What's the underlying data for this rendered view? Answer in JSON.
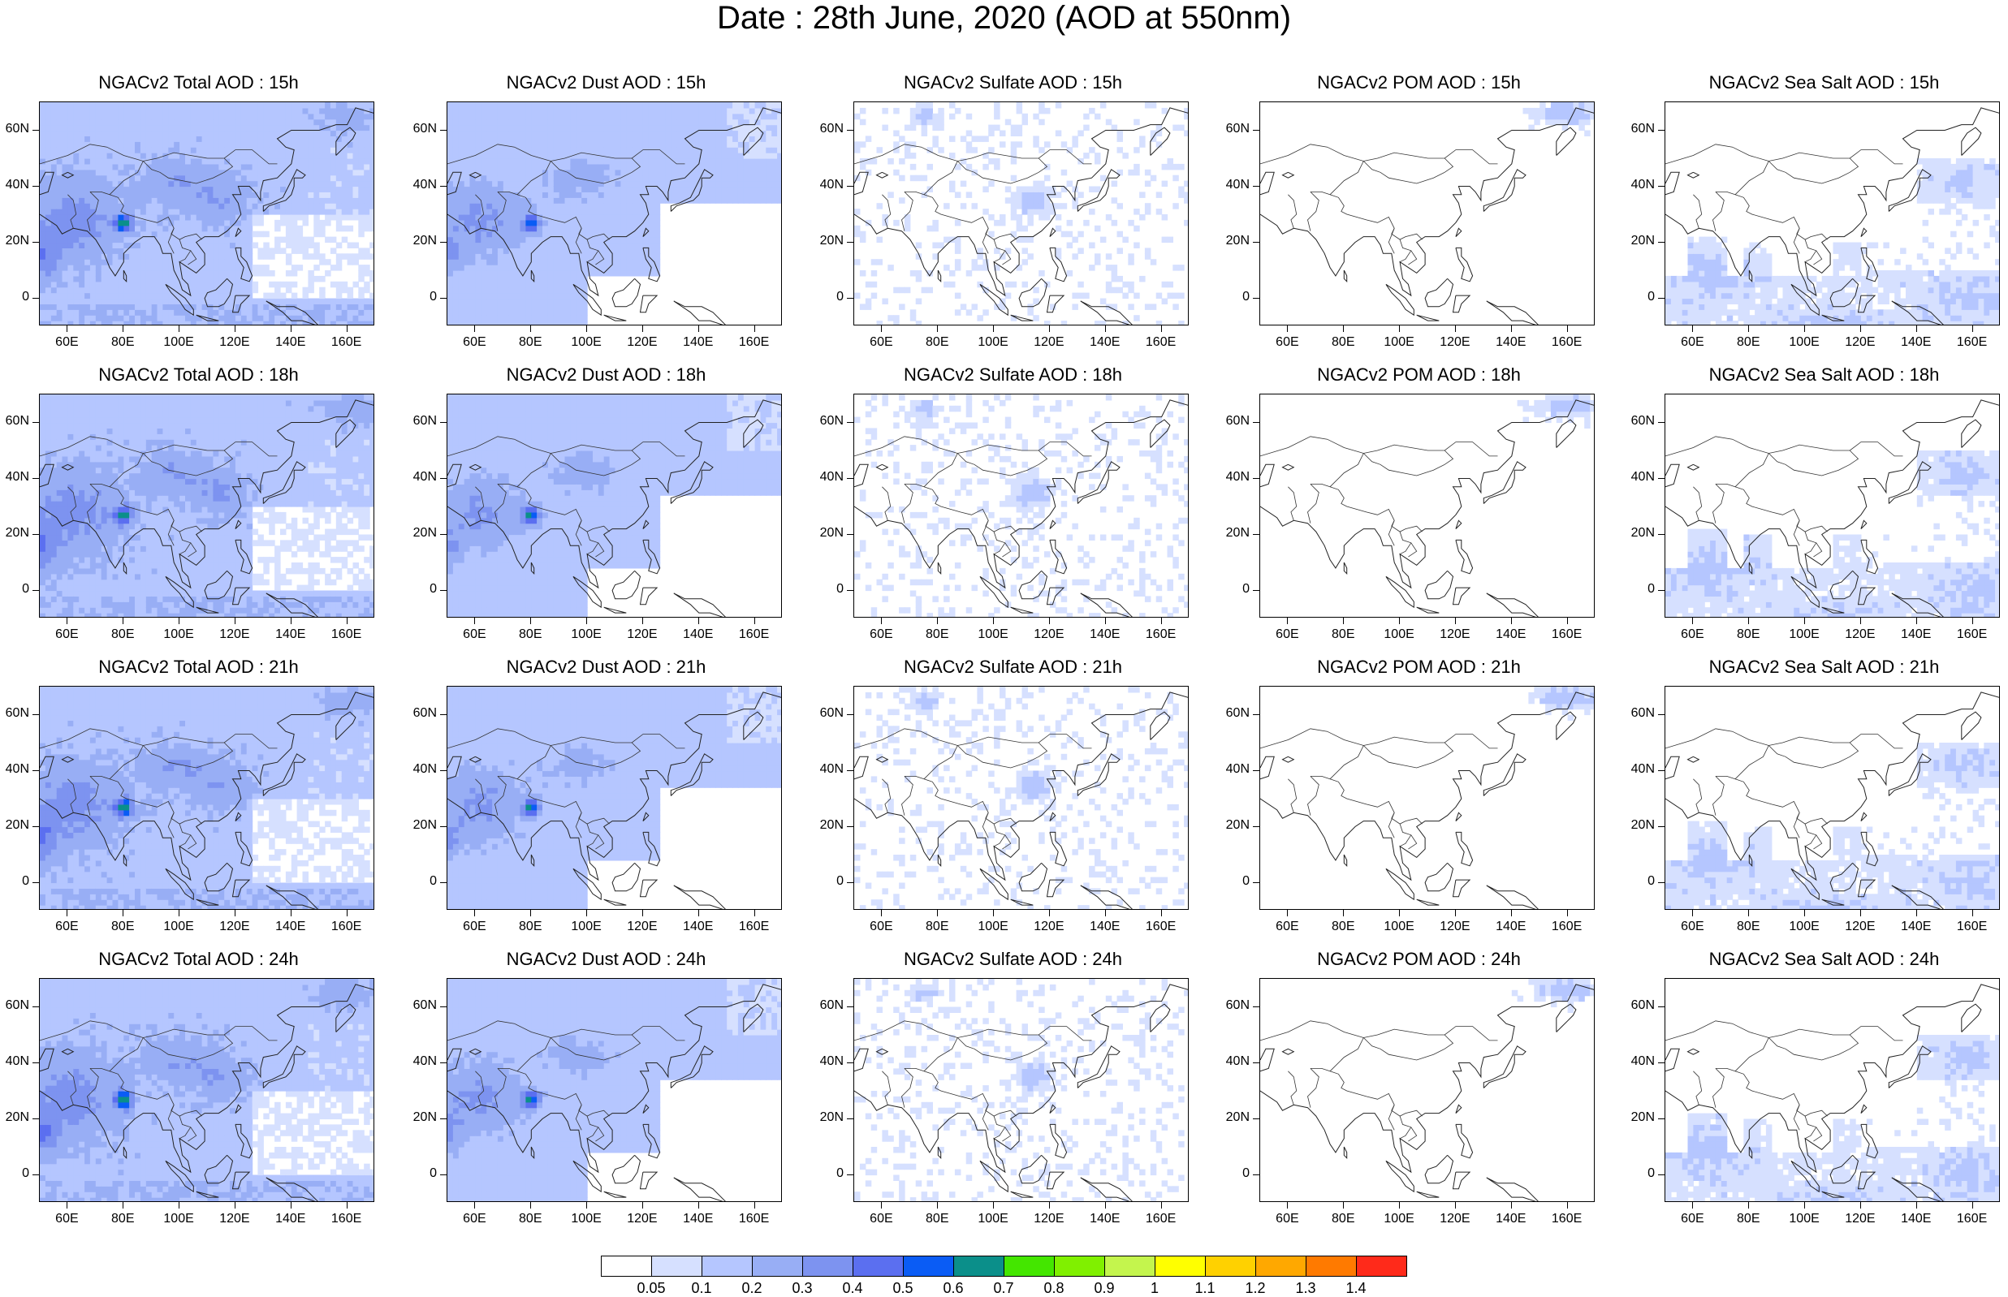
{
  "title": "Date : 28th June, 2020 (AOD at 550nm)",
  "grid": {
    "rows": 4,
    "cols": 5
  },
  "panels": [
    [
      "NGACv2 Total AOD : 15h",
      "NGACv2 Dust AOD : 15h",
      "NGACv2 Sulfate AOD : 15h",
      "NGACv2 POM AOD : 15h",
      "NGACv2 Sea Salt AOD : 15h"
    ],
    [
      "NGACv2 Total AOD : 18h",
      "NGACv2 Dust AOD : 18h",
      "NGACv2 Sulfate AOD : 18h",
      "NGACv2 POM AOD : 18h",
      "NGACv2 Sea Salt AOD : 18h"
    ],
    [
      "NGACv2 Total AOD : 21h",
      "NGACv2 Dust AOD : 21h",
      "NGACv2 Sulfate AOD : 21h",
      "NGACv2 POM AOD : 21h",
      "NGACv2 Sea Salt AOD : 21h"
    ],
    [
      "NGACv2 Total AOD : 24h",
      "NGACv2 Dust AOD : 24h",
      "NGACv2 Sulfate AOD : 24h",
      "NGACv2 POM AOD : 24h",
      "NGACv2 Sea Salt  AOD : 24h"
    ]
  ],
  "axes": {
    "x_ticks": [
      "60E",
      "80E",
      "100E",
      "120E",
      "140E",
      "160E"
    ],
    "x_values": [
      60,
      80,
      100,
      120,
      140,
      160
    ],
    "x_range": [
      50,
      170
    ],
    "y_ticks": [
      "60N",
      "40N",
      "20N",
      "0"
    ],
    "y_values": [
      60,
      40,
      20,
      0
    ],
    "y_range": [
      -10,
      70
    ]
  },
  "colorbar": {
    "labels": [
      "0.05",
      "0.1",
      "0.2",
      "0.3",
      "0.4",
      "0.5",
      "0.6",
      "0.7",
      "0.8",
      "0.9",
      "1",
      "1.1",
      "1.2",
      "1.3",
      "1.4"
    ],
    "colors": [
      "#ffffff",
      "#d6e0ff",
      "#b5c6ff",
      "#98aef5",
      "#7d93f0",
      "#5b6ff0",
      "#0a5cf5",
      "#0b8f8a",
      "#44e600",
      "#80f000",
      "#c4f54d",
      "#ffff00",
      "#ffd100",
      "#ffa800",
      "#ff7a00",
      "#ff2a1a"
    ]
  }
}
